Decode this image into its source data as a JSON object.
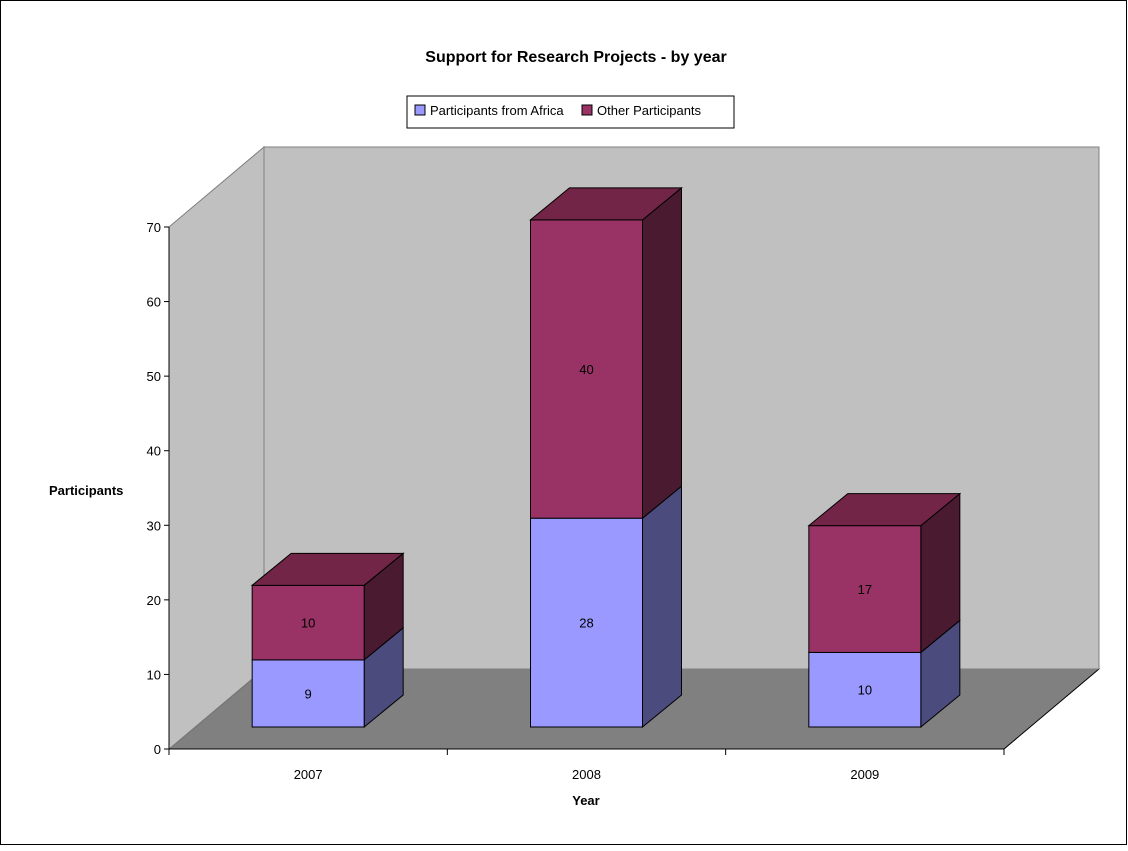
{
  "chart_data": {
    "type": "bar",
    "stacked": true,
    "three_d": true,
    "title": "Support for Research Projects - by year",
    "xlabel": "Year",
    "ylabel": "Participants",
    "categories": [
      "2007",
      "2008",
      "2009"
    ],
    "ylim": [
      0,
      70
    ],
    "yticks": [
      0,
      10,
      20,
      30,
      40,
      50,
      60,
      70
    ],
    "grid": false,
    "legend_position": "top",
    "series": [
      {
        "name": "Participants from Africa",
        "values": [
          9,
          28,
          10
        ],
        "color_front": "#9999ff",
        "color_top": "#7777cc",
        "color_side": "#4b4b7e"
      },
      {
        "name": "Other Participants",
        "values": [
          10,
          40,
          17
        ],
        "color_front": "#993366",
        "color_top": "#722547",
        "color_side": "#4a1a30"
      }
    ],
    "wall_color": "#c0c0c0",
    "floor_color": "#808080"
  }
}
